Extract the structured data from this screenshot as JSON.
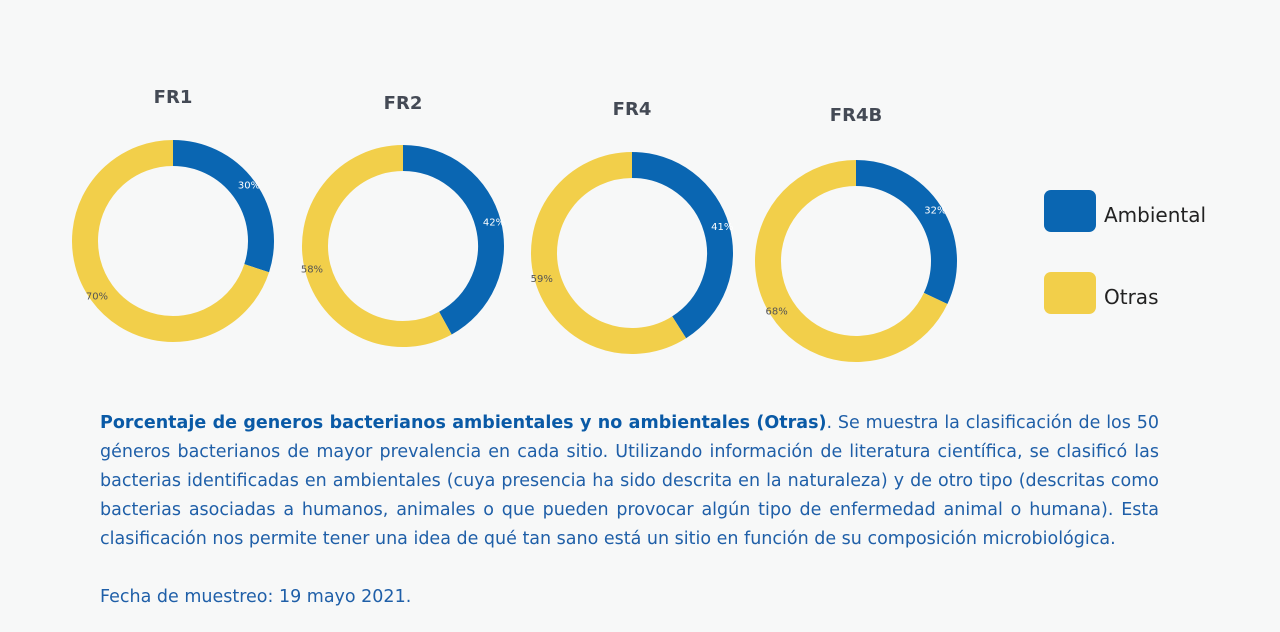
{
  "chart_data": [
    {
      "type": "pie",
      "title": "FR1",
      "categories": [
        "Ambiental",
        "Otras"
      ],
      "values": [
        30,
        70
      ],
      "labels": [
        "30%",
        "70%"
      ]
    },
    {
      "type": "pie",
      "title": "FR2",
      "categories": [
        "Ambiental",
        "Otras"
      ],
      "values": [
        42,
        58
      ],
      "labels": [
        "42%",
        "58%"
      ]
    },
    {
      "type": "pie",
      "title": "FR4",
      "categories": [
        "Ambiental",
        "Otras"
      ],
      "values": [
        41,
        59
      ],
      "labels": [
        "41%",
        "59%"
      ]
    },
    {
      "type": "pie",
      "title": "FR4B",
      "categories": [
        "Ambiental",
        "Otras"
      ],
      "values": [
        32,
        68
      ],
      "labels": [
        "32%",
        "68%"
      ]
    }
  ],
  "colors": {
    "ambiental": "#0a66b2",
    "otras": "#f2cf4a"
  },
  "legend": [
    {
      "label": "Ambiental",
      "color": "#0a66b2"
    },
    {
      "label": "Otras",
      "color": "#f2cf4a"
    }
  ],
  "caption": {
    "bold": "Porcentaje de generos bacterianos ambientales y no ambientales (Otras)",
    "text": ". Se muestra la clasificación de los 50 géneros bacterianos de mayor prevalencia en cada sitio. Utilizando información de literatura científica, se clasificó las bacterias identificadas en ambientales (cuya presencia ha sido descrita en la naturaleza) y de otro tipo (descritas como bacterias asociadas a humanos, animales o que pueden provocar algún tipo de enfermedad animal o humana). Esta clasificación nos permite tener una idea de qué tan sano está un sitio en función de su composición microbiológica.",
    "date": "Fecha de muestreo: 19 mayo 2021."
  }
}
